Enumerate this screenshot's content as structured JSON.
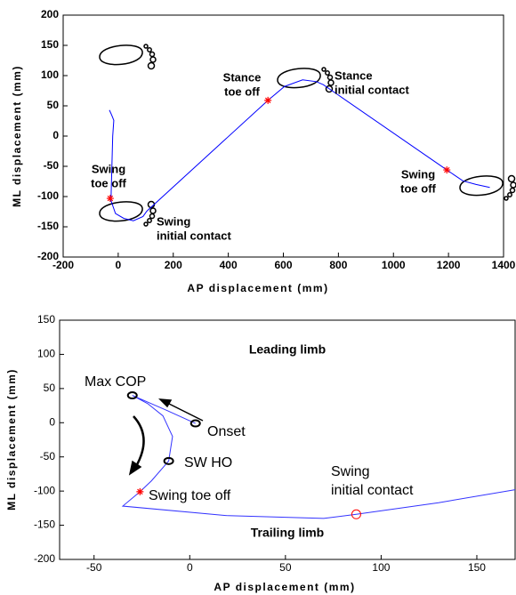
{
  "chart_data": [
    {
      "type": "line",
      "xlabel": "AP displacement (mm)",
      "ylabel": "ML displacement (mm)",
      "xlim": [
        -200,
        1400
      ],
      "xticks": [
        -200,
        0,
        200,
        400,
        600,
        800,
        1000,
        1200,
        1400
      ],
      "ylim": [
        -200,
        200
      ],
      "yticks": [
        -200,
        -150,
        -100,
        -50,
        0,
        50,
        100,
        150,
        200
      ],
      "series": [
        {
          "color": "#0000ff",
          "x": [
            -32,
            -24,
            -16,
            -20,
            -26,
            -29,
            -10,
            20,
            55,
            90,
            104,
            544,
            604,
            670,
            720,
            745,
            1194,
            1252,
            1300,
            1350
          ],
          "values": [
            43,
            35,
            26,
            0,
            -101,
            -103,
            -128,
            -136,
            -140,
            -133,
            -124,
            59,
            82,
            93,
            90,
            85,
            -56,
            -74,
            -80,
            -85
          ]
        },
        {
          "color": "#ff0000",
          "marker": "star",
          "x": [
            -29,
            544,
            1194
          ],
          "values": [
            -103,
            59,
            -56
          ]
        }
      ],
      "annotations": [
        [
          "Stance",
          "toe off"
        ],
        [
          "Stance",
          "initial contact"
        ],
        [
          "Swing",
          "toe off"
        ],
        [
          "Swing",
          "initial contact"
        ],
        [
          "Swing",
          "toe off"
        ]
      ]
    },
    {
      "type": "line",
      "xlabel": "AP displacement (mm)",
      "ylabel": "ML displacement (mm)",
      "xlim": [
        -68,
        170
      ],
      "xticks": [
        -50,
        0,
        50,
        100,
        150
      ],
      "ylim": [
        -200,
        150
      ],
      "yticks": [
        -200,
        -150,
        -100,
        -50,
        0,
        50,
        100,
        150
      ],
      "series": [
        {
          "color": "#3333ff",
          "x": [
            3,
            -12,
            -30,
            -22,
            -14,
            -9,
            -11,
            -20,
            -26,
            -35,
            20,
            70,
            87,
            130,
            170
          ],
          "values": [
            -1,
            18,
            40,
            28,
            10,
            -20,
            -56,
            -85,
            -101,
            -122,
            -136,
            -140,
            -134,
            -117,
            -98
          ]
        },
        {
          "color": "#000000",
          "marker": "circle",
          "x": [
            3,
            -30,
            -11
          ],
          "values": [
            -1,
            40,
            -56
          ]
        },
        {
          "color": "#ff0000",
          "marker": "star",
          "x": [
            -26
          ],
          "values": [
            -101
          ]
        },
        {
          "color": "#ff0000",
          "marker": "ring",
          "x": [
            87
          ],
          "values": [
            -134
          ]
        }
      ],
      "annotations": [
        [
          "Leading limb"
        ],
        [
          "Trailing limb"
        ],
        [
          "Max COP"
        ],
        [
          "Onset"
        ],
        [
          "SW HO"
        ],
        [
          "Swing toe off"
        ],
        [
          "Swing",
          "initial contact"
        ]
      ]
    }
  ]
}
